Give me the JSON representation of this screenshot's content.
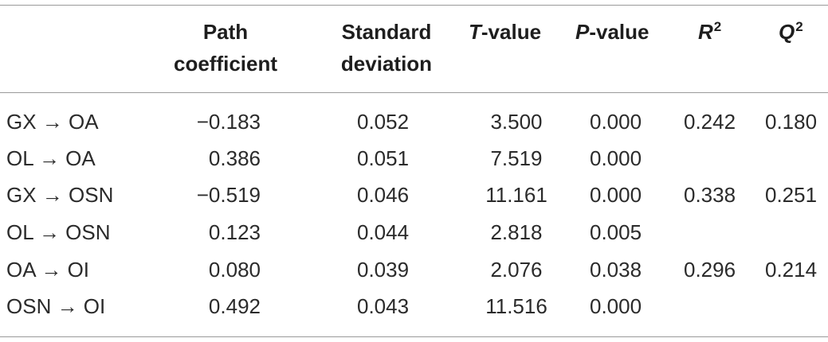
{
  "table": {
    "headers": {
      "path_line1": "Path",
      "path_line2": "coefficient",
      "sd_line1": "Standard",
      "sd_line2": "deviation",
      "t_italic": "T",
      "t_rest": "-value",
      "p_italic": "P",
      "p_rest": "-value",
      "r2_letter": "R",
      "r2_sup": "2",
      "q2_letter": "Q",
      "q2_sup": "2"
    },
    "rows": [
      {
        "label": "GX → OA",
        "path": "−0.183",
        "sd": "0.052",
        "t": "3.500",
        "p": "0.000",
        "r2": "0.242",
        "q2": "0.180"
      },
      {
        "label": "OL → OA",
        "path": "0.386",
        "sd": "0.051",
        "t": "7.519",
        "p": "0.000",
        "r2": "",
        "q2": ""
      },
      {
        "label": "GX → OSN",
        "path": "−0.519",
        "sd": "0.046",
        "t": "11.161",
        "p": "0.000",
        "r2": "0.338",
        "q2": "0.251"
      },
      {
        "label": "OL → OSN",
        "path": "0.123",
        "sd": "0.044",
        "t": "2.818",
        "p": "0.005",
        "r2": "",
        "q2": ""
      },
      {
        "label": "OA → OI",
        "path": "0.080",
        "sd": "0.039",
        "t": "2.076",
        "p": "0.038",
        "r2": "0.296",
        "q2": "0.214"
      },
      {
        "label": "OSN → OI",
        "path": "0.492",
        "sd": "0.043",
        "t": "11.516",
        "p": "0.000",
        "r2": "",
        "q2": ""
      }
    ]
  }
}
